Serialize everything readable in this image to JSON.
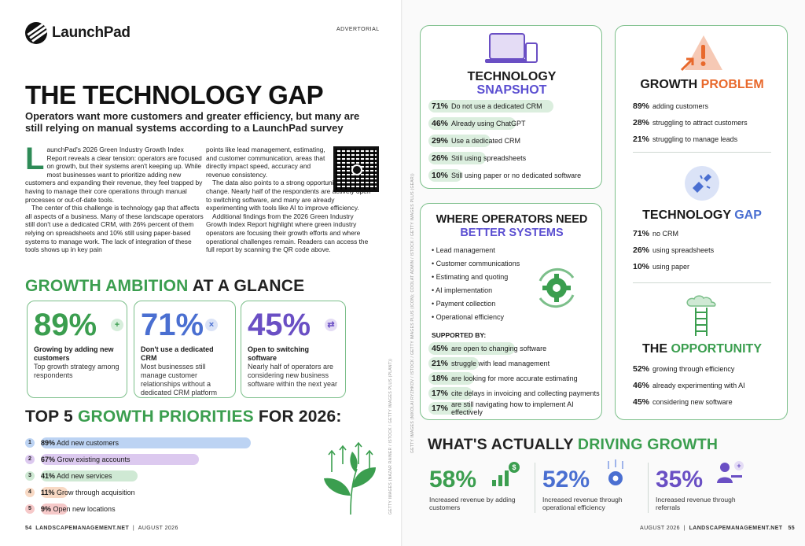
{
  "header": {
    "logo_text": "LaunchPad",
    "advertorial": "ADVERTORIAL"
  },
  "article": {
    "title": "THE TECHNOLOGY GAP",
    "subtitle": "Operators want more customers and greater efficiency, but many are still relying on manual systems according to a LaunchPad survey",
    "dropcap": "L",
    "p1": "aunchPad's 2026 Green Industry Growth Index Report reveals a clear tension: operators are focused on growth, but their systems aren't keeping up. While most businesses want to prioritize adding new customers and expanding their revenue, they feel trapped by having to manage their core operations through manual processes or out-of-date tools.",
    "p2": "The center of this challenge is technology gap that affects all aspects of a business. Many of these landscape operators still don't use a dedicated CRM, with 26% percent of them relying on spreadsheets and 10% still using paper-based systems to manage work. The lack of integration of these tools shows up in key pain",
    "p3": "points like lead management, estimating, and customer communication, areas that directly impact speed, accuracy and revenue consistency.",
    "p4": "The data also points to a strong opportunity for change. Nearly half of the respondents are actively open to switching software, and many are already experimenting with tools like AI to improve efficiency.",
    "p5": "Additional findings from the 2026 Green Industry Growth Index Report highlight where green industry operators are focusing their growth efforts and where operational challenges remain. Readers can access the full report by scanning the QR code above."
  },
  "glance": {
    "title_a": "GROWTH AMBITION",
    "title_b": " AT A GLANCE",
    "cards": [
      {
        "value": "89%",
        "icon": "+",
        "title": "Growing by adding new customers",
        "desc": "Top growth strategy among respondents",
        "color": "#3b9e4f",
        "badge_bg": "#d6eedb"
      },
      {
        "value": "71%",
        "icon": "×",
        "title": "Don't use a dedicated CRM",
        "desc": "Most businesses still manage customer relationships without a dedicated CRM platform",
        "color": "#4a6fd1",
        "badge_bg": "#dbe3f7"
      },
      {
        "value": "45%",
        "icon": "⇄",
        "title": "Open to switching software",
        "desc": "Nearly half of operators are considering new business software within the next year",
        "color": "#6a4fc4",
        "badge_bg": "#e4dcf5"
      }
    ]
  },
  "priorities": {
    "title_a": "TOP 5 ",
    "title_b": "GROWTH PRIORITIES",
    "title_c": " FOR 2026:",
    "items": [
      {
        "num": "1",
        "pct": "89%",
        "label": " Add new customers",
        "value": 89,
        "color": "#bcd3f3",
        "num_bg": "#bcd3f3"
      },
      {
        "num": "2",
        "pct": "67%",
        "label": " Grow existing accounts",
        "value": 67,
        "color": "#dcc9ef",
        "num_bg": "#dcc9ef"
      },
      {
        "num": "3",
        "pct": "41%",
        "label": " Add new services",
        "value": 41,
        "color": "#cfe9d4",
        "num_bg": "#cfe9d4"
      },
      {
        "num": "4",
        "pct": "11%",
        "label": " Grow through acquisition",
        "value": 11,
        "color": "#f8d9c4",
        "num_bg": "#f8d9c4"
      },
      {
        "num": "5",
        "pct": "9%",
        "label": " Open new locations",
        "value": 9,
        "color": "#f6c9c9",
        "num_bg": "#f6c9c9"
      }
    ]
  },
  "footer_left": {
    "page": "54",
    "site": "LANDSCAPEMANAGEMENT.NET",
    "date": "AUGUST 2026"
  },
  "footer_right": {
    "date": "AUGUST 2026",
    "site": "LANDSCAPEMANAGEMENT.NET",
    "page": "55"
  },
  "credits": {
    "left": "GETTY IMAGES (NAZAR RAINER / ISTOCK / GETTY IMAGES PLUS (PLANT))",
    "right": "GETTY IMAGES (NIKOLAI RYZHKOV / ISTOCK / GETTY IMAGES PLUS (ICON); COOLAT ADMIN / ISTOCK / GETTY IMAGES PLUS (GEAR))"
  },
  "snapshot": {
    "title_a": "TECHNOLOGY",
    "title_b": "SNAPSHOT",
    "rows": [
      {
        "pct": "71%",
        "label": "Do not use a dedicated CRM",
        "value": 71
      },
      {
        "pct": "46%",
        "label": "Already using ChatGPT",
        "value": 46
      },
      {
        "pct": "29%",
        "label": "Use a dedicated CRM",
        "value": 29
      },
      {
        "pct": "26%",
        "label": "Still using spreadsheets",
        "value": 26
      },
      {
        "pct": "10%",
        "label": "Still using paper or no dedicated software",
        "value": 10
      }
    ]
  },
  "systems": {
    "title_a": "WHERE OPERATORS NEED",
    "title_b": "BETTER SYSTEMS",
    "bullets": [
      "Lead management",
      "Customer communications",
      "Estimating and quoting",
      "AI implementation",
      "Payment collection",
      "Operational efficiency"
    ],
    "supported_by": "SUPPORTED BY:",
    "rows": [
      {
        "pct": "45%",
        "label": "are open to changing software",
        "value": 45
      },
      {
        "pct": "21%",
        "label": "struggle with lead management",
        "value": 21
      },
      {
        "pct": "18%",
        "label": "are looking for more accurate estimating",
        "value": 18
      },
      {
        "pct": "17%",
        "label": "cite delays in invoicing and collecting payments",
        "value": 17
      },
      {
        "pct": "17%",
        "label": "are still navigating how to implement AI effectively",
        "value": 17
      }
    ]
  },
  "growth_problem": {
    "title_a": "GROWTH ",
    "title_b": "PROBLEM",
    "rows": [
      {
        "pct": "89%",
        "label": "adding customers"
      },
      {
        "pct": "28%",
        "label": "struggling to attract customers"
      },
      {
        "pct": "21%",
        "label": "struggling to manage leads"
      }
    ]
  },
  "tech_gap": {
    "title_a": "TECHNOLOGY ",
    "title_b": "GAP",
    "rows": [
      {
        "pct": "71%",
        "label": "no CRM"
      },
      {
        "pct": "26%",
        "label": "using spreadsheets"
      },
      {
        "pct": "10%",
        "label": "using paper"
      }
    ]
  },
  "opportunity": {
    "title_a": "THE ",
    "title_b": "OPPORTUNITY",
    "rows": [
      {
        "pct": "52%",
        "label": "growing through efficiency"
      },
      {
        "pct": "46%",
        "label": "already experimenting with AI"
      },
      {
        "pct": "45%",
        "label": "considering new software"
      }
    ]
  },
  "driving": {
    "title_a": "WHAT'S ACTUALLY ",
    "title_b": "DRIVING GROWTH",
    "items": [
      {
        "value": "58%",
        "desc": "Increased revenue by adding customers",
        "color": "#3b9e4f"
      },
      {
        "value": "52%",
        "desc": "Increased revenue through operational efficiency",
        "color": "#4a6fd1"
      },
      {
        "value": "35%",
        "desc": "Increased revenue through referrals",
        "color": "#6a4fc4"
      }
    ]
  }
}
